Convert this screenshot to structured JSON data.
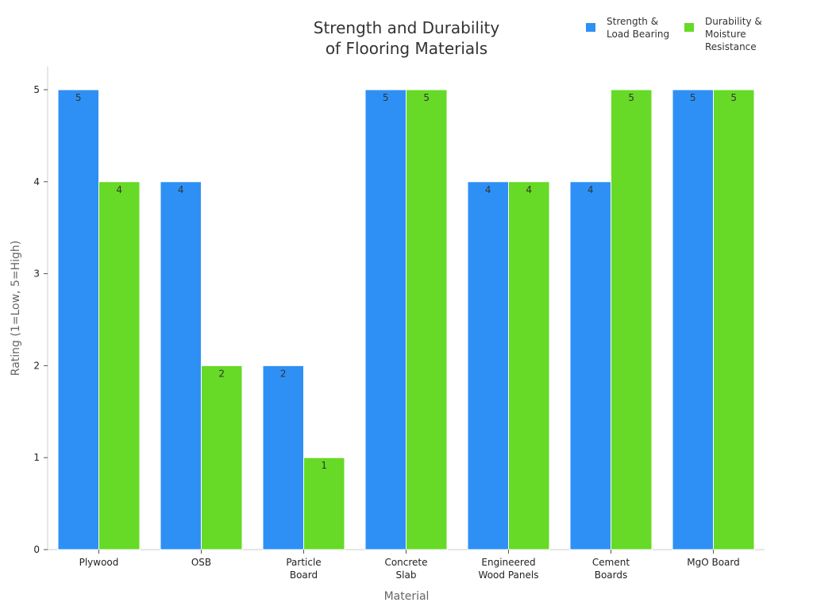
{
  "chart_data": {
    "type": "bar",
    "title_lines": [
      "Strength and Durability",
      "of Flooring Materials"
    ],
    "xlabel": "Material",
    "ylabel": "Rating (1=Low, 5=High)",
    "ylim": [
      0,
      5.25
    ],
    "yticks": [
      0,
      1,
      2,
      3,
      4,
      5
    ],
    "grid": false,
    "legend_position": "top-right",
    "categories": [
      [
        "Plywood"
      ],
      [
        "OSB"
      ],
      [
        "Particle",
        "Board"
      ],
      [
        "Concrete",
        "Slab"
      ],
      [
        "Engineered",
        "Wood Panels"
      ],
      [
        "Cement",
        "Boards"
      ],
      [
        "MgO Board"
      ]
    ],
    "series": [
      {
        "name_lines": [
          "Strength &",
          "Load Bearing"
        ],
        "color": "#2e90f5",
        "values": [
          5,
          4,
          2,
          5,
          4,
          4,
          5
        ]
      },
      {
        "name_lines": [
          "Durability &",
          "Moisture",
          "Resistance"
        ],
        "color": "#66da26",
        "values": [
          4,
          2,
          1,
          5,
          4,
          5,
          5
        ]
      }
    ]
  }
}
